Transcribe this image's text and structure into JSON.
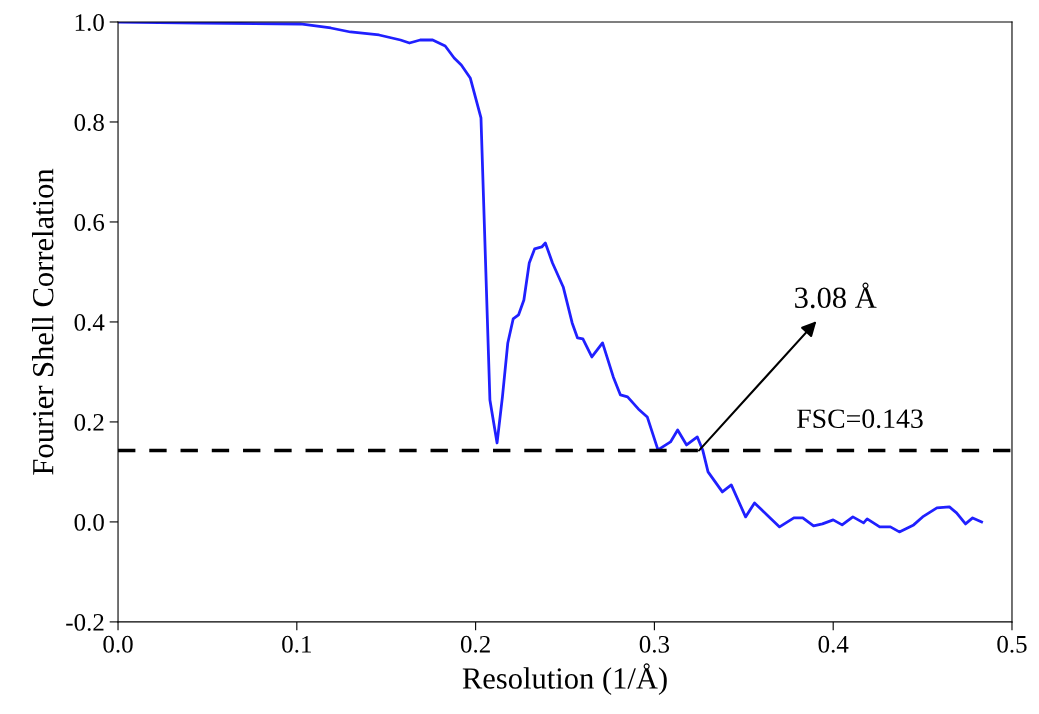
{
  "chart_data": {
    "type": "line",
    "xlabel": "Resolution (1/Å)",
    "ylabel": "Fourier Shell Correlation",
    "x": [
      0,
      0.046,
      0.102,
      0.119,
      0.13,
      0.146,
      0.158,
      0.163,
      0.169,
      0.176,
      0.183,
      0.188,
      0.192,
      0.197,
      0.2,
      0.203,
      0.208,
      0.212,
      0.215,
      0.218,
      0.221,
      0.224,
      0.227,
      0.23,
      0.233,
      0.237,
      0.239,
      0.243,
      0.249,
      0.254,
      0.257,
      0.26,
      0.265,
      0.271,
      0.277,
      0.281,
      0.285,
      0.291,
      0.296,
      0.302,
      0.309,
      0.313,
      0.318,
      0.324,
      0.327,
      0.33,
      0.338,
      0.343,
      0.351,
      0.356,
      0.363,
      0.37,
      0.378,
      0.383,
      0.389,
      0.394,
      0.4,
      0.405,
      0.411,
      0.417,
      0.419,
      0.426,
      0.432,
      0.437,
      0.445,
      0.45,
      0.458,
      0.465,
      0.469,
      0.474,
      0.478,
      0.483
    ],
    "series": [
      {
        "color": "#2020ff",
        "values": [
          1.0,
          0.998,
          0.996,
          0.988,
          0.98,
          0.974,
          0.964,
          0.958,
          0.964,
          0.964,
          0.952,
          0.928,
          0.914,
          0.888,
          0.848,
          0.808,
          0.244,
          0.158,
          0.25,
          0.358,
          0.406,
          0.414,
          0.444,
          0.518,
          0.546,
          0.55,
          0.558,
          0.518,
          0.47,
          0.398,
          0.368,
          0.366,
          0.33,
          0.358,
          0.29,
          0.254,
          0.25,
          0.226,
          0.21,
          0.144,
          0.16,
          0.184,
          0.154,
          0.17,
          0.144,
          0.1,
          0.06,
          0.074,
          0.01,
          0.038,
          0.014,
          -0.01,
          0.008,
          0.008,
          -0.008,
          -0.004,
          0.004,
          -0.006,
          0.01,
          -0.002,
          0.006,
          -0.01,
          -0.01,
          -0.02,
          -0.006,
          0.01,
          0.028,
          0.03,
          0.018,
          -0.004,
          0.008,
          0.0
        ]
      }
    ],
    "xlim": [
      0,
      0.5
    ],
    "xticks": [
      {
        "value": 0,
        "label": "0.0"
      },
      0.1,
      0.2,
      0.3,
      0.4,
      0.5
    ],
    "ylim": [
      -0.2,
      1.0
    ],
    "yticks": [
      -0.2,
      {
        "value": 0,
        "label": "0.0"
      },
      0.2,
      0.4,
      0.6,
      0.8,
      {
        "value": 1,
        "label": "1.0"
      }
    ],
    "ref_lines": [
      {
        "axis": "y",
        "value": 0.143,
        "label": "FSC=0.143",
        "color": "#000000",
        "line_style": "dashed"
      }
    ],
    "annotations": [
      {
        "text": "3.08 Å",
        "x": 0.325,
        "y": 0.143
      }
    ],
    "grid": false,
    "legend": false,
    "marker": "none",
    "line_style": "solid"
  }
}
